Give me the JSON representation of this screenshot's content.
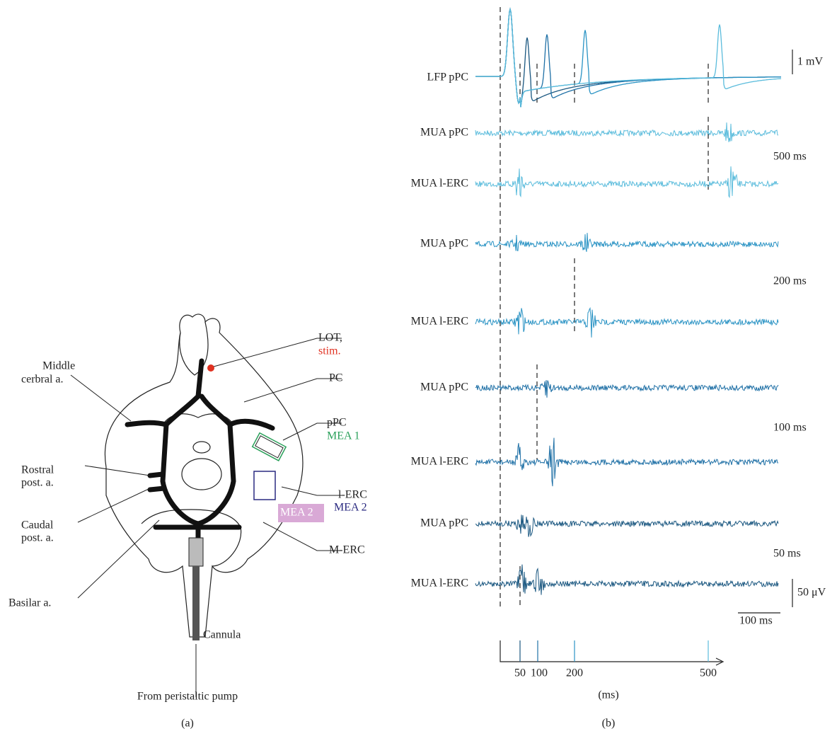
{
  "panel_a": {
    "label": "(a)",
    "lot": [
      "LOT,",
      "stim."
    ],
    "middle_cerebral": [
      "Middle",
      "cerbral a."
    ],
    "pc": "PC",
    "ppc": [
      "pPC",
      "MEA 1"
    ],
    "rostral": [
      "Rostral",
      "post. a."
    ],
    "lerc": [
      "l-ERC",
      "MEA 2"
    ],
    "mea2_box": "MEA 2",
    "caudal": [
      "Caudal",
      "post. a."
    ],
    "merc": "M-ERC",
    "basilar": "Basilar a.",
    "cannula": "Cannula",
    "pump": "From peristaltic pump"
  },
  "panel_b": {
    "label": "(b)",
    "traces": [
      "LFP pPC",
      "MUA pPC",
      "MUA l-ERC",
      "MUA pPC",
      "MUA l-ERC",
      "MUA pPC",
      "MUA l-ERC",
      "MUA pPC",
      "MUA l-ERC"
    ],
    "intervals": [
      "500 ms",
      "200 ms",
      "100 ms",
      "50 ms"
    ],
    "lfp_scale": "1 mV",
    "mua_scale": "50 μV",
    "time_scale": "100 ms",
    "time_axis": {
      "ticks": [
        "50",
        "100",
        "200",
        "500"
      ],
      "unit": "(ms)"
    }
  }
}
